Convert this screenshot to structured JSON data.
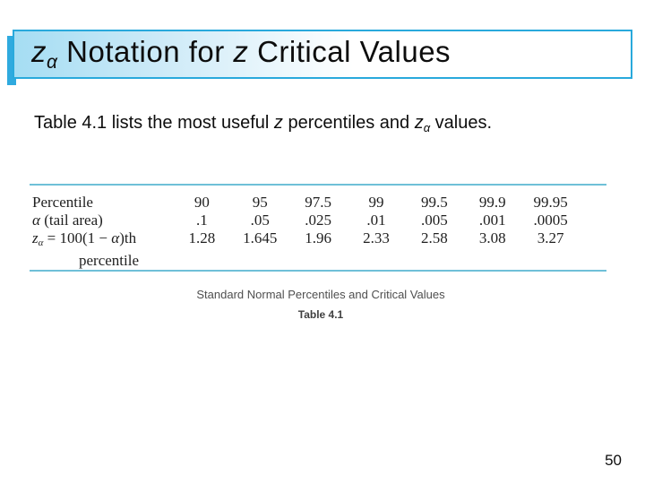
{
  "slide": {
    "title": {
      "z1": "z",
      "alpha_sub": "α",
      "middle": " Notation for ",
      "z2": "z",
      "end": " Critical Values"
    },
    "intro": {
      "part1": "Table 4.1 lists the most useful ",
      "z1": "z",
      "part2": " percentiles and ",
      "z2": "z",
      "alpha_sub": "α",
      "part3": " values."
    },
    "table": {
      "rows": {
        "percentile": {
          "label": "Percentile",
          "values": [
            "90",
            "95",
            "97.5",
            "99",
            "99.5",
            "99.9",
            "99.95"
          ]
        },
        "tail_area": {
          "label_alpha": "α",
          "label_rest": " (tail area)",
          "values": [
            ".1",
            ".05",
            ".025",
            ".01",
            ".005",
            ".001",
            ".0005"
          ]
        },
        "z_critical": {
          "label_z": "z",
          "label_alpha_sub": "α",
          "label_eq": " = 100(1 − ",
          "label_alpha2": "α",
          "label_suffix": ")th",
          "label_line2": "percentile",
          "values": [
            "1.28",
            "1.645",
            "1.96",
            "2.33",
            "2.58",
            "3.08",
            "3.27"
          ]
        }
      },
      "caption": "Standard Normal Percentiles and Critical Values",
      "caption_label": "Table 4.1"
    },
    "page_number": "50",
    "colors": {
      "accent_blue": "#2FAADF",
      "title_border": "#29A9DC",
      "title_fill_start": "#A5DDF3",
      "table_rule_teal": "#6FC0D8"
    }
  }
}
